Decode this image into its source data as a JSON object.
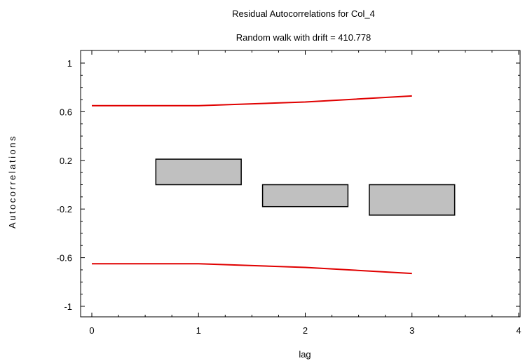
{
  "chart_data": {
    "type": "bar",
    "title": "Residual Autocorrelations for Col_4",
    "subtitle": "Random walk with drift = 410.778",
    "xlabel": "lag",
    "ylabel": "Autocorrelations",
    "xlim": [
      0,
      4
    ],
    "ylim": [
      -1,
      1
    ],
    "x_ticks": [
      "0",
      "1",
      "2",
      "3",
      "4"
    ],
    "y_ticks": [
      "1",
      "0.6",
      "0.2",
      "-0.2",
      "-0.6",
      "-1"
    ],
    "bar_color": "#c0c0c0",
    "bar_half_width": 0.4,
    "bars": [
      {
        "lag": 1,
        "value": 0.21
      },
      {
        "lag": 2,
        "value": -0.18
      },
      {
        "lag": 3,
        "value": -0.25
      }
    ],
    "limits_color": "#e00000",
    "upper_limit": {
      "x": [
        0,
        1,
        2,
        3
      ],
      "y": [
        0.65,
        0.65,
        0.68,
        0.73
      ]
    },
    "lower_limit": {
      "x": [
        0,
        1,
        2,
        3
      ],
      "y": [
        -0.65,
        -0.65,
        -0.68,
        -0.73
      ]
    }
  }
}
